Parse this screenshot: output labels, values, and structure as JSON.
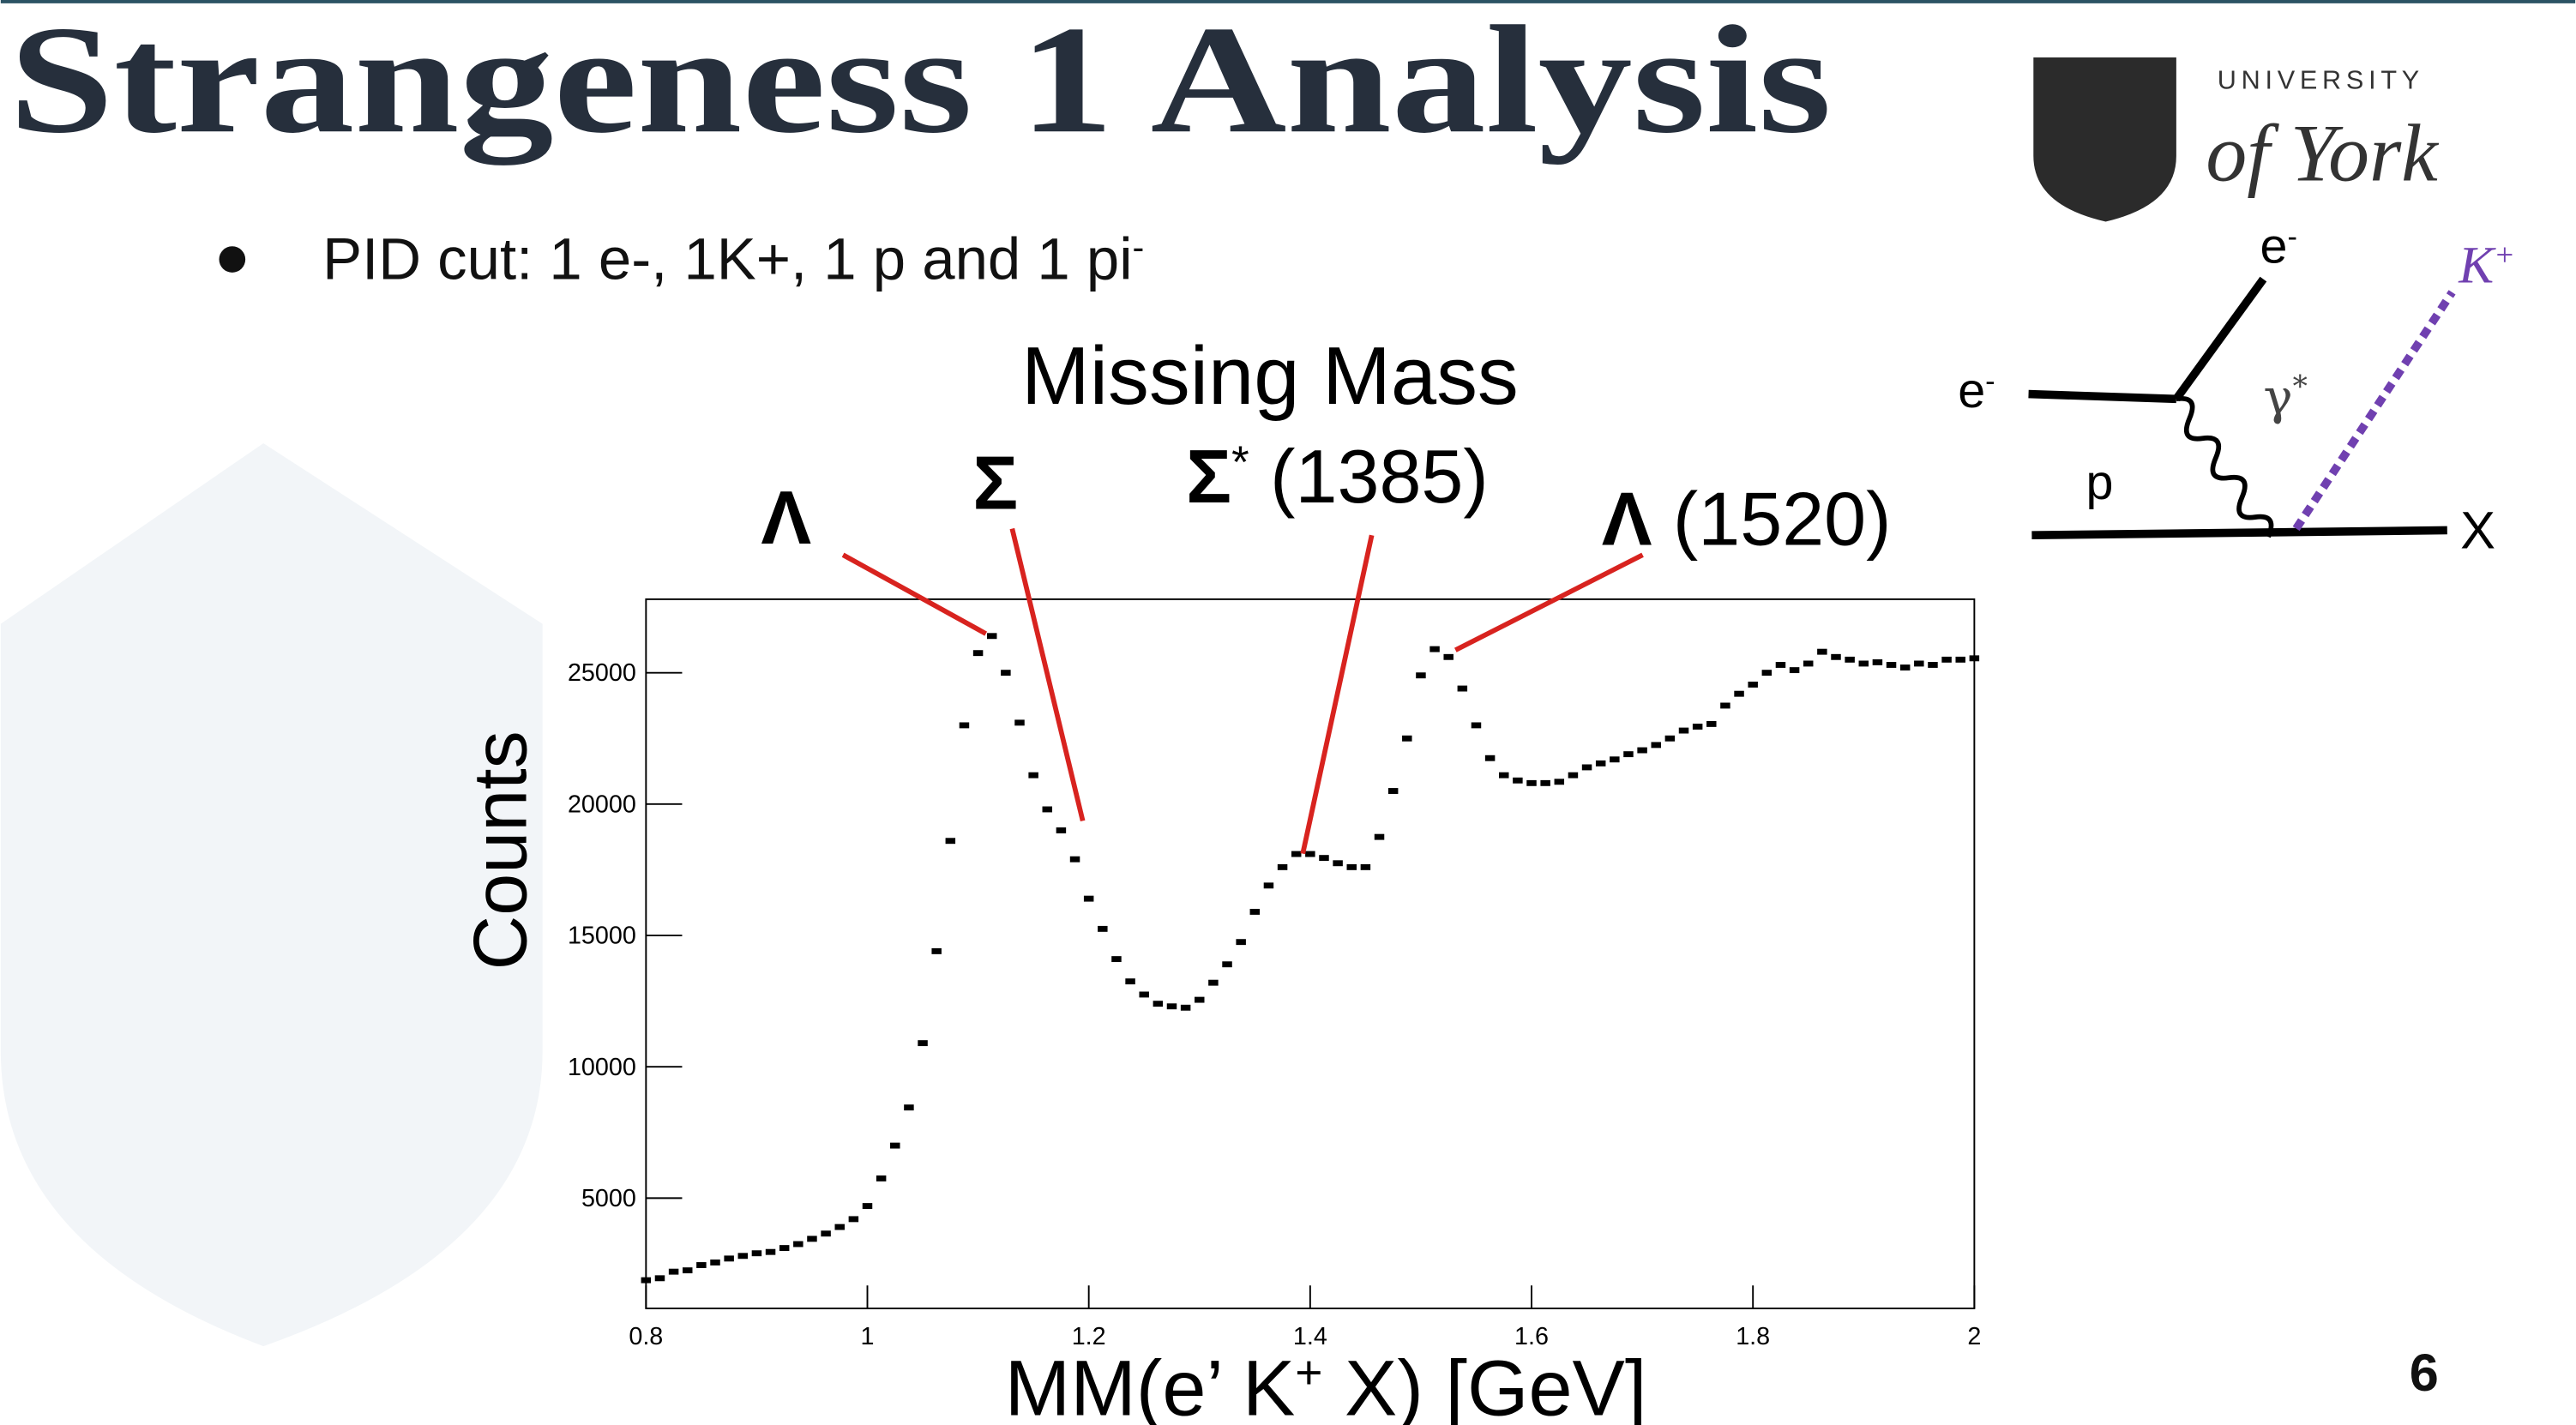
{
  "slide": {
    "title": "Strangeness 1 Analysis",
    "bullet": {
      "text": "PID cut: 1 e-, 1K+, 1 p and 1 pi",
      "sup": "-"
    },
    "logo": {
      "line1": "UNIVERSITY",
      "line2": "of York"
    },
    "page_number": "6",
    "diagram": {
      "electron_in": {
        "text": "e",
        "sup": "-"
      },
      "electron_out": {
        "text": "e",
        "sup": "-"
      },
      "proton": "p",
      "photon": {
        "text": "γ",
        "sup": "*"
      },
      "kaon": {
        "text": "K",
        "sup": "+"
      },
      "x": "X"
    }
  },
  "chart_data": {
    "type": "scatter",
    "title": "Missing Mass",
    "x_label": {
      "before": "MM(e’ K",
      "sup": "+",
      "after": " X) [GeV]"
    },
    "y_label": "Counts",
    "color": "#000000",
    "x": [
      0.8,
      0.8125,
      0.825,
      0.8375,
      0.85,
      0.8625,
      0.875,
      0.8875,
      0.9,
      0.9125,
      0.925,
      0.9375,
      0.95,
      0.9625,
      0.975,
      0.9875,
      1.0,
      1.0125,
      1.025,
      1.0375,
      1.05,
      1.0625,
      1.075,
      1.0875,
      1.1,
      1.1125,
      1.125,
      1.1375,
      1.15,
      1.1625,
      1.175,
      1.1875,
      1.2,
      1.2125,
      1.225,
      1.2375,
      1.25,
      1.2625,
      1.275,
      1.2875,
      1.3,
      1.3125,
      1.325,
      1.3375,
      1.35,
      1.3625,
      1.375,
      1.3875,
      1.4,
      1.4125,
      1.425,
      1.4375,
      1.45,
      1.4625,
      1.475,
      1.4875,
      1.5,
      1.5125,
      1.525,
      1.5375,
      1.55,
      1.5625,
      1.575,
      1.5875,
      1.6,
      1.6125,
      1.625,
      1.6375,
      1.65,
      1.6625,
      1.675,
      1.6875,
      1.7,
      1.7125,
      1.725,
      1.7375,
      1.75,
      1.7625,
      1.775,
      1.7875,
      1.8,
      1.8125,
      1.825,
      1.8375,
      1.85,
      1.8625,
      1.875,
      1.8875,
      1.9,
      1.9125,
      1.925,
      1.9375,
      1.95,
      1.9625,
      1.975,
      1.9875,
      2.0
    ],
    "values": [
      1875,
      1950,
      2200,
      2250,
      2450,
      2550,
      2700,
      2800,
      2900,
      2950,
      3100,
      3250,
      3450,
      3650,
      3900,
      4200,
      4700,
      5750,
      7000,
      8450,
      10900,
      14400,
      18600,
      23000,
      25750,
      26400,
      25000,
      23100,
      21100,
      19800,
      19000,
      17900,
      16400,
      15250,
      14100,
      13250,
      12750,
      12400,
      12300,
      12250,
      12550,
      13200,
      13900,
      14750,
      15900,
      16900,
      17600,
      18100,
      18100,
      17950,
      17750,
      17600,
      17600,
      18750,
      20500,
      22500,
      24900,
      25900,
      25600,
      24400,
      23000,
      21750,
      21100,
      20900,
      20800,
      20800,
      20850,
      21100,
      21400,
      21550,
      21700,
      21900,
      22050,
      22250,
      22500,
      22800,
      22950,
      23050,
      23750,
      24200,
      24550,
      25000,
      25300,
      25100,
      25350,
      25800,
      25600,
      25500,
      25350,
      25400,
      25300,
      25200,
      25350,
      25300,
      25500,
      25500,
      25550
    ],
    "xlim": [
      0.8,
      2.0
    ],
    "ylim": [
      800,
      27800
    ],
    "xticks": [
      0.8,
      1,
      1.2,
      1.4,
      1.6,
      1.8,
      2
    ],
    "yticks": [
      5000,
      10000,
      15000,
      20000,
      25000
    ],
    "annotations": [
      {
        "label": "Λ"
      },
      {
        "label": "Σ"
      },
      {
        "label": "Σ",
        "sup": "*",
        "suffix": " (1385)"
      },
      {
        "label": "Λ",
        "suffix": " (1520)"
      }
    ]
  }
}
